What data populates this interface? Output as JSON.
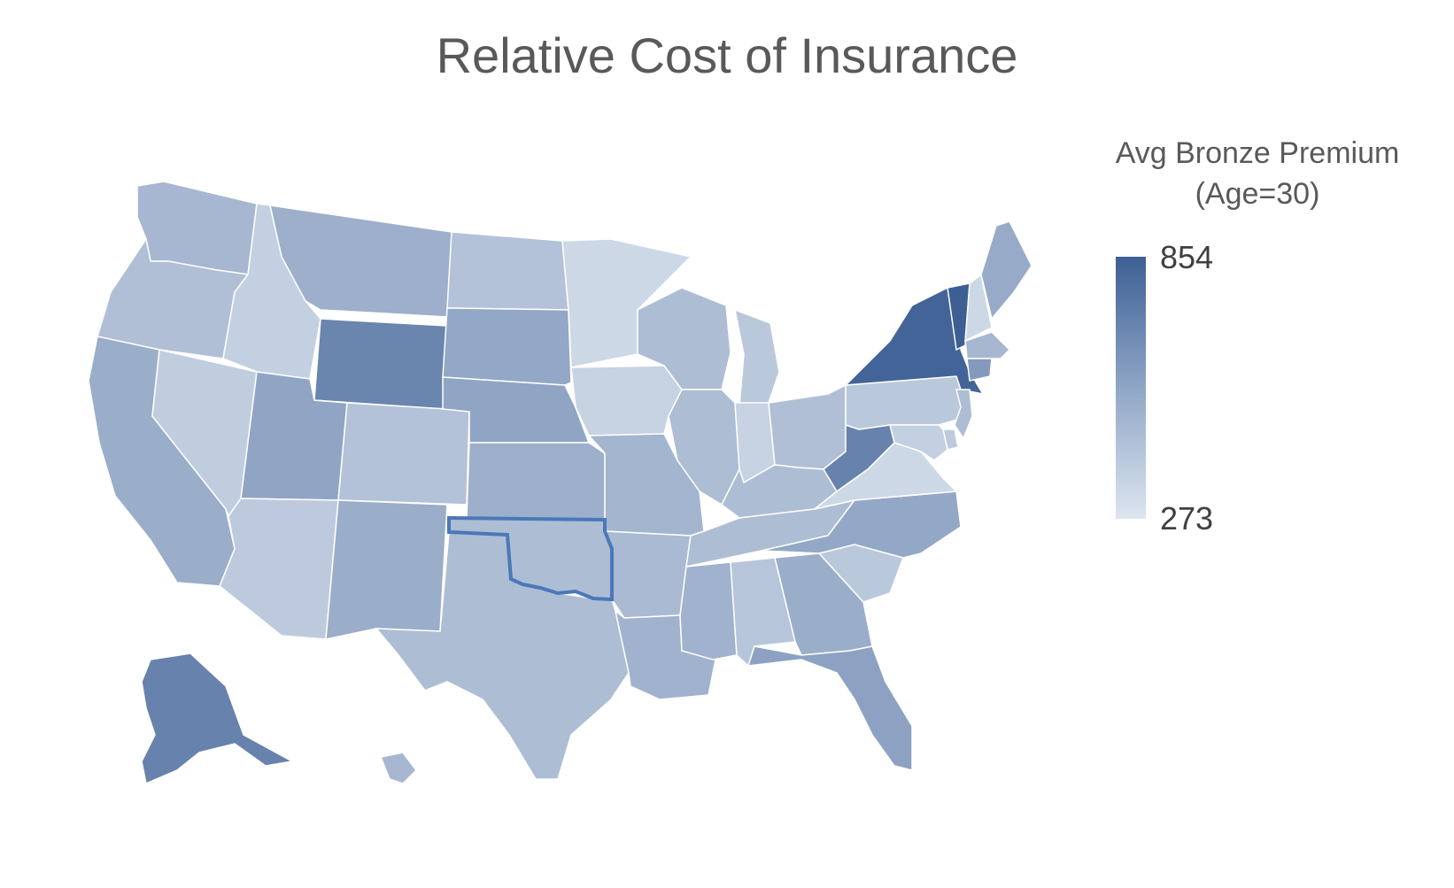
{
  "title": "Relative Cost of Insurance",
  "legend": {
    "title_line1": "Avg Bronze Premium",
    "title_line2": "(Age=30)",
    "max_label": "854",
    "min_label": "273",
    "max_value": 854,
    "min_value": 273,
    "color_high": "#3d5f94",
    "color_low": "#dde5f0"
  },
  "highlight_color": "#4a78b8",
  "highlighted_state": "OK",
  "states": [
    {
      "code": "WA",
      "level": 0.34
    },
    {
      "code": "OR",
      "level": 0.28
    },
    {
      "code": "CA",
      "level": 0.42
    },
    {
      "code": "NV",
      "level": 0.18
    },
    {
      "code": "ID",
      "level": 0.16
    },
    {
      "code": "MT",
      "level": 0.4
    },
    {
      "code": "WY",
      "level": 0.72
    },
    {
      "code": "UT",
      "level": 0.48
    },
    {
      "code": "AZ",
      "level": 0.2
    },
    {
      "code": "CO",
      "level": 0.26
    },
    {
      "code": "NM",
      "level": 0.42
    },
    {
      "code": "ND",
      "level": 0.26
    },
    {
      "code": "SD",
      "level": 0.46
    },
    {
      "code": "NE",
      "level": 0.48
    },
    {
      "code": "KS",
      "level": 0.4
    },
    {
      "code": "OK",
      "level": 0.3
    },
    {
      "code": "TX",
      "level": 0.3
    },
    {
      "code": "MN",
      "level": 0.1
    },
    {
      "code": "IA",
      "level": 0.14
    },
    {
      "code": "MO",
      "level": 0.36
    },
    {
      "code": "AR",
      "level": 0.32
    },
    {
      "code": "LA",
      "level": 0.38
    },
    {
      "code": "WI",
      "level": 0.3
    },
    {
      "code": "IL",
      "level": 0.3
    },
    {
      "code": "MI",
      "level": 0.22
    },
    {
      "code": "IN",
      "level": 0.14
    },
    {
      "code": "OH",
      "level": 0.28
    },
    {
      "code": "KY",
      "level": 0.3
    },
    {
      "code": "TN",
      "level": 0.3
    },
    {
      "code": "MS",
      "level": 0.38
    },
    {
      "code": "AL",
      "level": 0.24
    },
    {
      "code": "GA",
      "level": 0.42
    },
    {
      "code": "FL",
      "level": 0.5
    },
    {
      "code": "SC",
      "level": 0.22
    },
    {
      "code": "NC",
      "level": 0.46
    },
    {
      "code": "VA",
      "level": 0.1
    },
    {
      "code": "WV",
      "level": 0.74
    },
    {
      "code": "PA",
      "level": 0.22
    },
    {
      "code": "NY",
      "level": 0.96
    },
    {
      "code": "VT",
      "level": 1.0
    },
    {
      "code": "NH",
      "level": 0.1
    },
    {
      "code": "ME",
      "level": 0.44
    },
    {
      "code": "MA",
      "level": 0.34
    },
    {
      "code": "CT",
      "level": 0.56
    },
    {
      "code": "NJ",
      "level": 0.3
    },
    {
      "code": "DE",
      "level": 0.2
    },
    {
      "code": "MD",
      "level": 0.16
    },
    {
      "code": "AK",
      "level": 0.74
    },
    {
      "code": "HI",
      "level": 0.34
    }
  ]
}
